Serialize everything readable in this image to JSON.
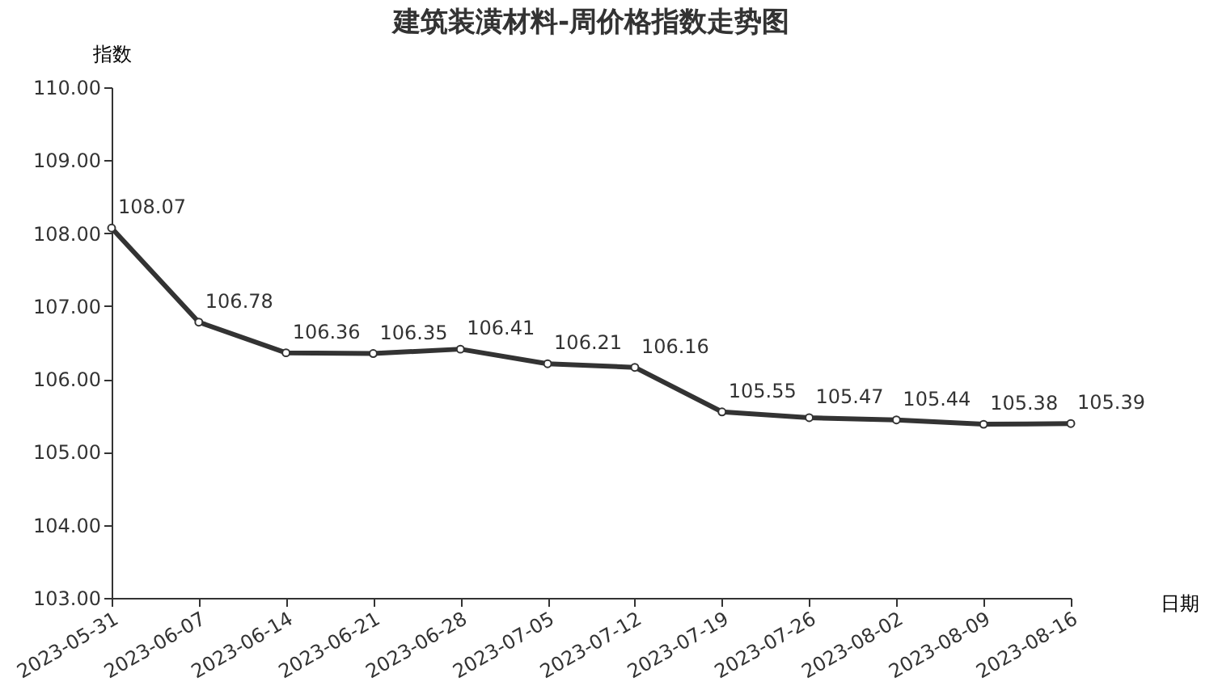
{
  "chart_data": {
    "type": "line",
    "title": "建筑装潢材料-周价格指数走势图",
    "xlabel": "日期",
    "ylabel": "指数",
    "categories": [
      "2023-05-31",
      "2023-06-07",
      "2023-06-14",
      "2023-06-21",
      "2023-06-28",
      "2023-07-05",
      "2023-07-12",
      "2023-07-19",
      "2023-07-26",
      "2023-08-02",
      "2023-08-09",
      "2023-08-16"
    ],
    "series": [
      {
        "color": "#333333",
        "values": [
          108.07,
          106.78,
          106.36,
          106.35,
          106.41,
          106.21,
          106.16,
          105.55,
          105.47,
          105.44,
          105.38,
          105.39
        ]
      }
    ],
    "ylim": [
      103,
      110
    ],
    "yticks": [
      {
        "value": 103,
        "label": "103.00"
      },
      {
        "value": 104,
        "label": "104.00"
      },
      {
        "value": 105,
        "label": "105.00"
      },
      {
        "value": 106,
        "label": "106.00"
      },
      {
        "value": 107,
        "label": "107.00"
      },
      {
        "value": 108,
        "label": "108.00"
      },
      {
        "value": 109,
        "label": "109.00"
      },
      {
        "value": 110,
        "label": "110.00"
      }
    ],
    "grid": false,
    "marker": "circle",
    "line_style": "solid",
    "data_labels": true
  }
}
